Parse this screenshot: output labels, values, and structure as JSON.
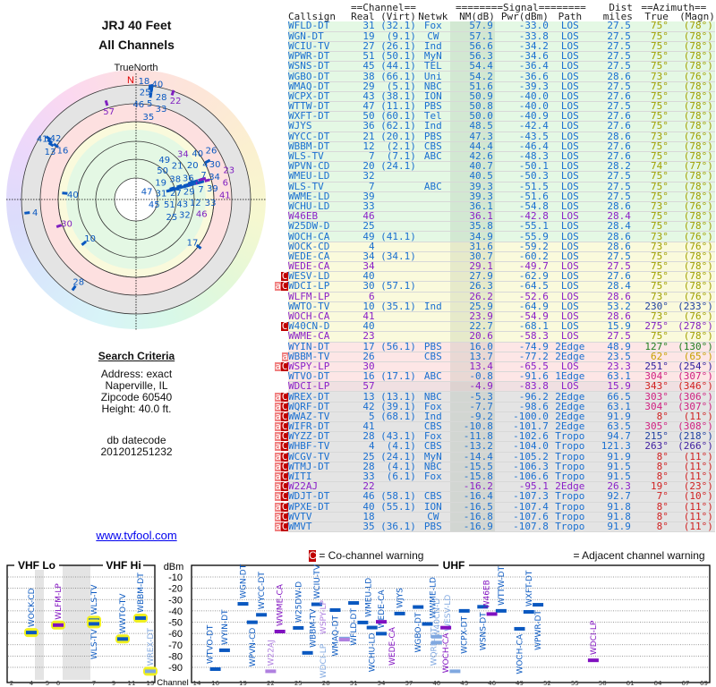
{
  "header": {
    "title1": "JRJ 40 Feet",
    "title2": "All Channels"
  },
  "polar": {
    "north_label": "TrueNorth",
    "n": "N"
  },
  "criteria": {
    "heading": "Search Criteria",
    "address": "Address: exact",
    "city": "Naperville, IL",
    "zip": "Zipcode 60540",
    "height": "Height: 40.0 ft.",
    "db_label": "db datecode",
    "db_value": "201201251232"
  },
  "link": "www.tvfool.com",
  "table": {
    "group_headers": {
      "channel": "==Channel==",
      "signal": "========Signal========",
      "dist": "Dist",
      "azimuth": "==Azimuth=="
    },
    "columns": [
      "Callsign",
      "Real",
      "(Virt)",
      "Netwk",
      "NM(dB)",
      "Pwr(dBm)",
      "Path",
      "miles",
      "True",
      "(Magn)"
    ],
    "rows": [
      {
        "call": "WFLD-DT",
        "real": "31",
        "virt": "(32.1)",
        "net": "Fox",
        "nm": "57.9",
        "pwr": "-33.0",
        "path": "LOS",
        "dist": "27.5",
        "t": "75°",
        "m": "(78°)",
        "bg": "g",
        "k": "b",
        "az": "#a0a000",
        "mk": ""
      },
      {
        "call": "WGN-DT",
        "real": "19",
        "virt": "(9.1)",
        "net": "CW",
        "nm": "57.1",
        "pwr": "-33.8",
        "path": "LOS",
        "dist": "27.5",
        "t": "75°",
        "m": "(78°)",
        "bg": "g",
        "k": "b",
        "az": "#a0a000",
        "mk": ""
      },
      {
        "call": "WCIU-TV",
        "real": "27",
        "virt": "(26.1)",
        "net": "Ind",
        "nm": "56.6",
        "pwr": "-34.2",
        "path": "LOS",
        "dist": "27.5",
        "t": "75°",
        "m": "(78°)",
        "bg": "g",
        "k": "b",
        "az": "#a0a000",
        "mk": ""
      },
      {
        "call": "WPWR-DT",
        "real": "51",
        "virt": "(50.1)",
        "net": "MyN",
        "nm": "56.3",
        "pwr": "-34.6",
        "path": "LOS",
        "dist": "27.5",
        "t": "75°",
        "m": "(78°)",
        "bg": "g",
        "k": "b",
        "az": "#a0a000",
        "mk": ""
      },
      {
        "call": "WSNS-DT",
        "real": "45",
        "virt": "(44.1)",
        "net": "TEL",
        "nm": "54.4",
        "pwr": "-36.4",
        "path": "LOS",
        "dist": "27.5",
        "t": "75°",
        "m": "(78°)",
        "bg": "g",
        "k": "b",
        "az": "#a0a000",
        "mk": ""
      },
      {
        "call": "WGBO-DT",
        "real": "38",
        "virt": "(66.1)",
        "net": "Uni",
        "nm": "54.2",
        "pwr": "-36.6",
        "path": "LOS",
        "dist": "28.6",
        "t": "73°",
        "m": "(76°)",
        "bg": "g",
        "k": "b",
        "az": "#a0a000",
        "mk": ""
      },
      {
        "call": "WMAQ-DT",
        "real": "29",
        "virt": "(5.1)",
        "net": "NBC",
        "nm": "51.6",
        "pwr": "-39.3",
        "path": "LOS",
        "dist": "27.5",
        "t": "75°",
        "m": "(78°)",
        "bg": "g",
        "k": "b",
        "az": "#a0a000",
        "mk": ""
      },
      {
        "call": "WCPX-DT",
        "real": "43",
        "virt": "(38.1)",
        "net": "ION",
        "nm": "50.9",
        "pwr": "-40.0",
        "path": "LOS",
        "dist": "27.6",
        "t": "75°",
        "m": "(78°)",
        "bg": "g",
        "k": "b",
        "az": "#a0a000",
        "mk": ""
      },
      {
        "call": "WTTW-DT",
        "real": "47",
        "virt": "(11.1)",
        "net": "PBS",
        "nm": "50.8",
        "pwr": "-40.0",
        "path": "LOS",
        "dist": "27.5",
        "t": "75°",
        "m": "(78°)",
        "bg": "g",
        "k": "b",
        "az": "#a0a000",
        "mk": ""
      },
      {
        "call": "WXFT-DT",
        "real": "50",
        "virt": "(60.1)",
        "net": "Tel",
        "nm": "50.0",
        "pwr": "-40.9",
        "path": "LOS",
        "dist": "27.6",
        "t": "75°",
        "m": "(78°)",
        "bg": "g",
        "k": "b",
        "az": "#a0a000",
        "mk": ""
      },
      {
        "call": "WJYS",
        "real": "36",
        "virt": "(62.1)",
        "net": "Ind",
        "nm": "48.5",
        "pwr": "-42.4",
        "path": "LOS",
        "dist": "27.6",
        "t": "75°",
        "m": "(78°)",
        "bg": "g",
        "k": "b",
        "az": "#a0a000",
        "mk": ""
      },
      {
        "call": "WYCC-DT",
        "real": "21",
        "virt": "(20.1)",
        "net": "PBS",
        "nm": "47.3",
        "pwr": "-43.5",
        "path": "LOS",
        "dist": "28.6",
        "t": "73°",
        "m": "(76°)",
        "bg": "g",
        "k": "b",
        "az": "#a0a000",
        "mk": ""
      },
      {
        "call": "WBBM-DT",
        "real": "12",
        "virt": "(2.1)",
        "net": "CBS",
        "nm": "44.4",
        "pwr": "-46.4",
        "path": "LOS",
        "dist": "27.6",
        "t": "75°",
        "m": "(78°)",
        "bg": "g",
        "k": "b",
        "az": "#a0a000",
        "mk": ""
      },
      {
        "call": "WLS-TV",
        "real": "7",
        "virt": "(7.1)",
        "net": "ABC",
        "nm": "42.6",
        "pwr": "-48.3",
        "path": "LOS",
        "dist": "27.6",
        "t": "75°",
        "m": "(78°)",
        "bg": "g",
        "k": "b",
        "az": "#a0a000",
        "mk": ""
      },
      {
        "call": "WPVN-CD",
        "real": "20",
        "virt": "(24.1)",
        "net": "",
        "nm": "40.7",
        "pwr": "-50.1",
        "path": "LOS",
        "dist": "28.2",
        "t": "74°",
        "m": "(77°)",
        "bg": "g",
        "k": "b",
        "az": "#a0a000",
        "mk": ""
      },
      {
        "call": "WMEU-LD",
        "real": "32",
        "virt": "",
        "net": "",
        "nm": "40.5",
        "pwr": "-50.3",
        "path": "LOS",
        "dist": "27.5",
        "t": "75°",
        "m": "(78°)",
        "bg": "g",
        "k": "b",
        "az": "#a0a000",
        "mk": ""
      },
      {
        "call": "WLS-TV",
        "real": "7",
        "virt": "",
        "net": "ABC",
        "nm": "39.3",
        "pwr": "-51.5",
        "path": "LOS",
        "dist": "27.5",
        "t": "75°",
        "m": "(78°)",
        "bg": "g",
        "k": "b",
        "az": "#a0a000",
        "mk": ""
      },
      {
        "call": "WWME-LD",
        "real": "39",
        "virt": "",
        "net": "",
        "nm": "39.3",
        "pwr": "-51.6",
        "path": "LOS",
        "dist": "27.5",
        "t": "75°",
        "m": "(78°)",
        "bg": "g",
        "k": "b",
        "az": "#a0a000",
        "mk": ""
      },
      {
        "call": "WCHU-LD",
        "real": "33",
        "virt": "",
        "net": "",
        "nm": "36.1",
        "pwr": "-54.8",
        "path": "LOS",
        "dist": "28.6",
        "t": "73°",
        "m": "(76°)",
        "bg": "g",
        "k": "b",
        "az": "#a0a000",
        "mk": ""
      },
      {
        "call": "W46EB",
        "real": "46",
        "virt": "",
        "net": "",
        "nm": "36.1",
        "pwr": "-42.8",
        "path": "LOS",
        "dist": "28.4",
        "t": "75°",
        "m": "(78°)",
        "bg": "g",
        "k": "p",
        "az": "#a0a000",
        "mk": ""
      },
      {
        "call": "W25DW-D",
        "real": "25",
        "virt": "",
        "net": "",
        "nm": "35.8",
        "pwr": "-55.1",
        "path": "LOS",
        "dist": "28.4",
        "t": "75°",
        "m": "(78°)",
        "bg": "g",
        "k": "b",
        "az": "#a0a000",
        "mk": ""
      },
      {
        "call": "WOCH-CA",
        "real": "49",
        "virt": "(41.1)",
        "net": "",
        "nm": "34.9",
        "pwr": "-55.9",
        "path": "LOS",
        "dist": "28.6",
        "t": "73°",
        "m": "(76°)",
        "bg": "g",
        "k": "b",
        "az": "#a0a000",
        "mk": ""
      },
      {
        "call": "WOCK-CD",
        "real": "4",
        "virt": "",
        "net": "",
        "nm": "31.6",
        "pwr": "-59.2",
        "path": "LOS",
        "dist": "28.6",
        "t": "73°",
        "m": "(76°)",
        "bg": "y",
        "k": "b",
        "az": "#a0a000",
        "mk": ""
      },
      {
        "call": "WEDE-CA",
        "real": "34",
        "virt": "(34.1)",
        "net": "",
        "nm": "30.7",
        "pwr": "-60.2",
        "path": "LOS",
        "dist": "27.5",
        "t": "75°",
        "m": "(78°)",
        "bg": "y",
        "k": "b",
        "az": "#a0a000",
        "mk": ""
      },
      {
        "call": "WEDE-CA",
        "real": "34",
        "virt": "",
        "net": "",
        "nm": "29.1",
        "pwr": "-49.7",
        "path": "LOS",
        "dist": "27.5",
        "t": "75°",
        "m": "(78°)",
        "bg": "y",
        "k": "p",
        "az": "#a0a000",
        "mk": ""
      },
      {
        "call": "WESV-LD",
        "real": "40",
        "virt": "",
        "net": "",
        "nm": "27.9",
        "pwr": "-62.9",
        "path": "LOS",
        "dist": "27.6",
        "t": "75°",
        "m": "(78°)",
        "bg": "y",
        "k": "b",
        "az": "#a0a000",
        "mk": "C"
      },
      {
        "call": "WDCI-LP",
        "real": "30",
        "virt": "(57.1)",
        "net": "",
        "nm": "26.3",
        "pwr": "-64.5",
        "path": "LOS",
        "dist": "28.4",
        "t": "75°",
        "m": "(78°)",
        "bg": "y",
        "k": "b",
        "az": "#a0a000",
        "mk": "aC"
      },
      {
        "call": "WLFM-LP",
        "real": "6",
        "virt": "",
        "net": "",
        "nm": "26.2",
        "pwr": "-52.6",
        "path": "LOS",
        "dist": "28.6",
        "t": "73°",
        "m": "(76°)",
        "bg": "y",
        "k": "p",
        "az": "#a0a000",
        "mk": ""
      },
      {
        "call": "WWTO-TV",
        "real": "10",
        "virt": "(35.1)",
        "net": "Ind",
        "nm": "25.9",
        "pwr": "-64.9",
        "path": "LOS",
        "dist": "53.2",
        "t": "230°",
        "m": "(233°)",
        "bg": "y",
        "k": "b",
        "az": "#2040a0",
        "mk": ""
      },
      {
        "call": "WOCH-CA",
        "real": "41",
        "virt": "",
        "net": "",
        "nm": "23.9",
        "pwr": "-54.9",
        "path": "LOS",
        "dist": "28.6",
        "t": "73°",
        "m": "(76°)",
        "bg": "y",
        "k": "p",
        "az": "#a0a000",
        "mk": ""
      },
      {
        "call": "W40CN-D",
        "real": "40",
        "virt": "",
        "net": "",
        "nm": "22.7",
        "pwr": "-68.1",
        "path": "LOS",
        "dist": "15.9",
        "t": "275°",
        "m": "(278°)",
        "bg": "y",
        "k": "b",
        "az": "#8020c0",
        "mk": "C"
      },
      {
        "call": "WWME-CA",
        "real": "23",
        "virt": "",
        "net": "",
        "nm": "20.6",
        "pwr": "-58.3",
        "path": "LOS",
        "dist": "27.5",
        "t": "75°",
        "m": "(78°)",
        "bg": "y",
        "k": "p",
        "az": "#a0a000",
        "mk": ""
      },
      {
        "call": "WYIN-DT",
        "real": "17",
        "virt": "(56.1)",
        "net": "PBS",
        "nm": "16.0",
        "pwr": "-74.9",
        "path": "2Edge",
        "dist": "48.9",
        "t": "127°",
        "m": "(130°)",
        "bg": "r",
        "k": "b",
        "az": "#208020",
        "mk": ""
      },
      {
        "call": "WBBM-TV",
        "real": "26",
        "virt": "",
        "net": "CBS",
        "nm": "13.7",
        "pwr": "-77.2",
        "path": "2Edge",
        "dist": "23.5",
        "t": "62°",
        "m": "(65°)",
        "bg": "r",
        "k": "b",
        "az": "#c8a000",
        "mk": "a"
      },
      {
        "call": "WSPY-LP",
        "real": "30",
        "virt": "",
        "net": "",
        "nm": "13.4",
        "pwr": "-65.5",
        "path": "LOS",
        "dist": "23.3",
        "t": "251°",
        "m": "(254°)",
        "bg": "r",
        "k": "p",
        "az": "#3020a0",
        "mk": "aC"
      },
      {
        "call": "WTVO-DT",
        "real": "16",
        "virt": "(17.1)",
        "net": "ABC",
        "nm": "-0.8",
        "pwr": "-91.6",
        "path": "1Edge",
        "dist": "63.1",
        "t": "304°",
        "m": "(307°)",
        "bg": "r",
        "k": "b",
        "az": "#d02080",
        "mk": ""
      },
      {
        "call": "WDCI-LP",
        "real": "57",
        "virt": "",
        "net": "",
        "nm": "-4.9",
        "pwr": "-83.8",
        "path": "LOS",
        "dist": "15.9",
        "t": "343°",
        "m": "(346°)",
        "bg": "q",
        "k": "p",
        "az": "#d02020",
        "mk": ""
      },
      {
        "call": "WREX-DT",
        "real": "13",
        "virt": "(13.1)",
        "net": "NBC",
        "nm": "-5.3",
        "pwr": "-96.2",
        "path": "2Edge",
        "dist": "66.5",
        "t": "303°",
        "m": "(306°)",
        "bg": "x",
        "k": "b",
        "az": "#d02080",
        "mk": "aC"
      },
      {
        "call": "WQRF-DT",
        "real": "42",
        "virt": "(39.1)",
        "net": "Fox",
        "nm": "-7.7",
        "pwr": "-98.6",
        "path": "2Edge",
        "dist": "63.1",
        "t": "304°",
        "m": "(307°)",
        "bg": "x",
        "k": "b",
        "az": "#d02080",
        "mk": "aC"
      },
      {
        "call": "WWAZ-TV",
        "real": "5",
        "virt": "(68.1)",
        "net": "Ind",
        "nm": "-9.2",
        "pwr": "-100.0",
        "path": "2Edge",
        "dist": "91.9",
        "t": "8°",
        "m": "(11°)",
        "bg": "x",
        "k": "b",
        "az": "#d02020",
        "mk": "aC"
      },
      {
        "call": "WIFR-DT",
        "real": "41",
        "virt": "",
        "net": "CBS",
        "nm": "-10.8",
        "pwr": "-101.7",
        "path": "2Edge",
        "dist": "63.5",
        "t": "305°",
        "m": "(308°)",
        "bg": "x",
        "k": "b",
        "az": "#d02080",
        "mk": "aC"
      },
      {
        "call": "WYZZ-DT",
        "real": "28",
        "virt": "(43.1)",
        "net": "Fox",
        "nm": "-11.8",
        "pwr": "-102.6",
        "path": "Tropo",
        "dist": "94.7",
        "t": "215°",
        "m": "(218°)",
        "bg": "x",
        "k": "b",
        "az": "#2040a0",
        "mk": "aC"
      },
      {
        "call": "WHBF-TV",
        "real": "4",
        "virt": "(4.1)",
        "net": "CBS",
        "nm": "-13.2",
        "pwr": "-104.0",
        "path": "Tropo",
        "dist": "121.3",
        "t": "263°",
        "m": "(266°)",
        "bg": "x",
        "k": "b",
        "az": "#4020a0",
        "mk": "aC"
      },
      {
        "call": "WCGV-TV",
        "real": "25",
        "virt": "(24.1)",
        "net": "MyN",
        "nm": "-14.4",
        "pwr": "-105.2",
        "path": "Tropo",
        "dist": "91.9",
        "t": "8°",
        "m": "(11°)",
        "bg": "x",
        "k": "b",
        "az": "#d02020",
        "mk": "aC"
      },
      {
        "call": "WTMJ-DT",
        "real": "28",
        "virt": "(4.1)",
        "net": "NBC",
        "nm": "-15.5",
        "pwr": "-106.3",
        "path": "Tropo",
        "dist": "91.5",
        "t": "8°",
        "m": "(11°)",
        "bg": "x",
        "k": "b",
        "az": "#d02020",
        "mk": "aC"
      },
      {
        "call": "WITI",
        "real": "33",
        "virt": "(6.1)",
        "net": "Fox",
        "nm": "-15.8",
        "pwr": "-106.6",
        "path": "Tropo",
        "dist": "91.5",
        "t": "8°",
        "m": "(11°)",
        "bg": "x",
        "k": "b",
        "az": "#d02020",
        "mk": "aC"
      },
      {
        "call": "W22AJ",
        "real": "22",
        "virt": "",
        "net": "",
        "nm": "-16.2",
        "pwr": "-95.1",
        "path": "2Edge",
        "dist": "26.3",
        "t": "19°",
        "m": "(23°)",
        "bg": "x",
        "k": "p",
        "az": "#d02020",
        "mk": "aC"
      },
      {
        "call": "WDJT-DT",
        "real": "46",
        "virt": "(58.1)",
        "net": "CBS",
        "nm": "-16.4",
        "pwr": "-107.3",
        "path": "Tropo",
        "dist": "92.7",
        "t": "7°",
        "m": "(10°)",
        "bg": "x",
        "k": "b",
        "az": "#d02020",
        "mk": "aC"
      },
      {
        "call": "WPXE-DT",
        "real": "40",
        "virt": "(55.1)",
        "net": "ION",
        "nm": "-16.5",
        "pwr": "-107.4",
        "path": "Tropo",
        "dist": "91.8",
        "t": "8°",
        "m": "(11°)",
        "bg": "x",
        "k": "b",
        "az": "#d02020",
        "mk": "aC"
      },
      {
        "call": "WVTV",
        "real": "18",
        "virt": "",
        "net": "CW",
        "nm": "-16.8",
        "pwr": "-107.6",
        "path": "Tropo",
        "dist": "91.8",
        "t": "8°",
        "m": "(11°)",
        "bg": "x",
        "k": "b",
        "az": "#d02020",
        "mk": "aC"
      },
      {
        "call": "WMVT",
        "real": "35",
        "virt": "(36.1)",
        "net": "PBS",
        "nm": "-16.9",
        "pwr": "-107.8",
        "path": "Tropo",
        "dist": "91.9",
        "t": "8°",
        "m": "(11°)",
        "bg": "x",
        "k": "b",
        "az": "#d02020",
        "mk": "aC"
      }
    ]
  },
  "legend": {
    "co_mark": "C",
    "co_text": "= Co-channel warning",
    "adj_mark": "a",
    "adj_text": "= Adjacent channel warning"
  },
  "chart_data": {
    "type": "scatter",
    "title": "",
    "ylabel": "dBm",
    "xlabel": "Channel",
    "ylim": [
      -95,
      -5
    ],
    "yticks": [
      "-10",
      "-20",
      "-30",
      "-40",
      "-50",
      "-60",
      "-70",
      "-80",
      "-90"
    ],
    "bands": [
      "VHF Lo",
      "VHF Hi",
      "UHF"
    ],
    "vhf_xticks": [
      "2",
      "4",
      "5",
      "6",
      "7",
      "9",
      "11",
      "13"
    ],
    "uhf_xticks": [
      "14",
      "16",
      "19",
      "22",
      "25",
      "28",
      "31",
      "34",
      "37",
      "40",
      "43",
      "46",
      "49",
      "52",
      "55",
      "58",
      "61",
      "64",
      "67",
      "69"
    ],
    "series_note": "points = table rows (Real channel, Pwr dBm)"
  },
  "colors": {
    "blue": "#1a6fd0",
    "purple": "#8a20c8",
    "bar": "#0a58c0"
  }
}
